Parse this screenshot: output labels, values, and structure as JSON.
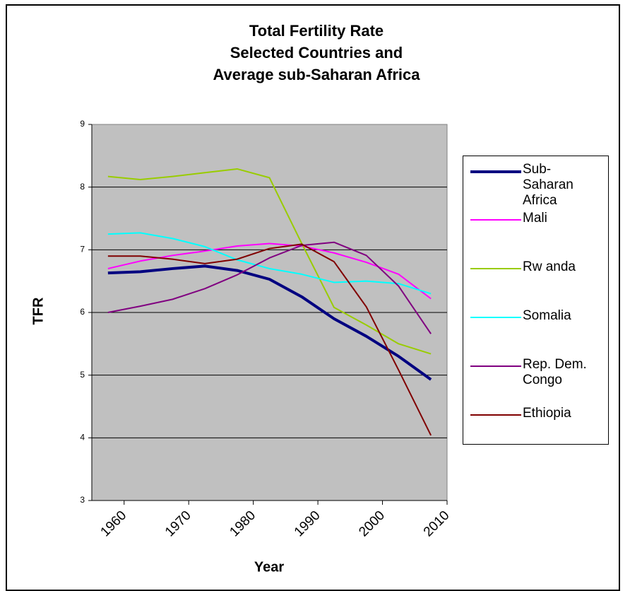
{
  "chart_data": {
    "type": "line",
    "title": [
      "Total Fertility Rate",
      "Selected Countries and",
      "Average sub-Saharan Africa"
    ],
    "x_label": "Year",
    "y_label": "TFR",
    "x": [
      1957.5,
      1962.5,
      1967.5,
      1972.5,
      1977.5,
      1982.5,
      1987.5,
      1992.5,
      1997.5,
      2002.5,
      2007.5
    ],
    "xlim": [
      1955,
      2010
    ],
    "xticks": [
      1960,
      1970,
      1980,
      1990,
      2000,
      2010
    ],
    "ylim": [
      3,
      9
    ],
    "yticks": [
      3,
      4,
      5,
      6,
      7,
      8,
      9
    ],
    "grid": true,
    "legend": "right",
    "series": [
      {
        "name": "Sub-Saharan Africa",
        "color": "#000080",
        "values": [
          6.63,
          6.65,
          6.7,
          6.74,
          6.67,
          6.53,
          6.25,
          5.9,
          5.62,
          5.3,
          4.93
        ]
      },
      {
        "name": "Mali",
        "color": "#ff00ff",
        "values": [
          6.7,
          6.82,
          6.91,
          6.98,
          7.06,
          7.1,
          7.06,
          6.95,
          6.8,
          6.61,
          6.22
        ]
      },
      {
        "name": "Rw anda",
        "color": "#99cc00",
        "values": [
          8.17,
          8.12,
          8.17,
          8.23,
          8.29,
          8.15,
          7.1,
          6.08,
          5.8,
          5.5,
          5.34
        ]
      },
      {
        "name": "Somalia",
        "color": "#00ffff",
        "values": [
          7.25,
          7.27,
          7.18,
          7.05,
          6.84,
          6.7,
          6.61,
          6.48,
          6.5,
          6.46,
          6.3
        ]
      },
      {
        "name": "Rep. Dem. Congo",
        "color": "#800080",
        "values": [
          6.0,
          6.1,
          6.21,
          6.38,
          6.6,
          6.87,
          7.07,
          7.12,
          6.91,
          6.42,
          5.66
        ]
      },
      {
        "name": "Ethiopia",
        "color": "#800000",
        "values": [
          6.9,
          6.9,
          6.85,
          6.78,
          6.85,
          7.02,
          7.09,
          6.81,
          6.09,
          5.08,
          4.04
        ]
      }
    ]
  }
}
